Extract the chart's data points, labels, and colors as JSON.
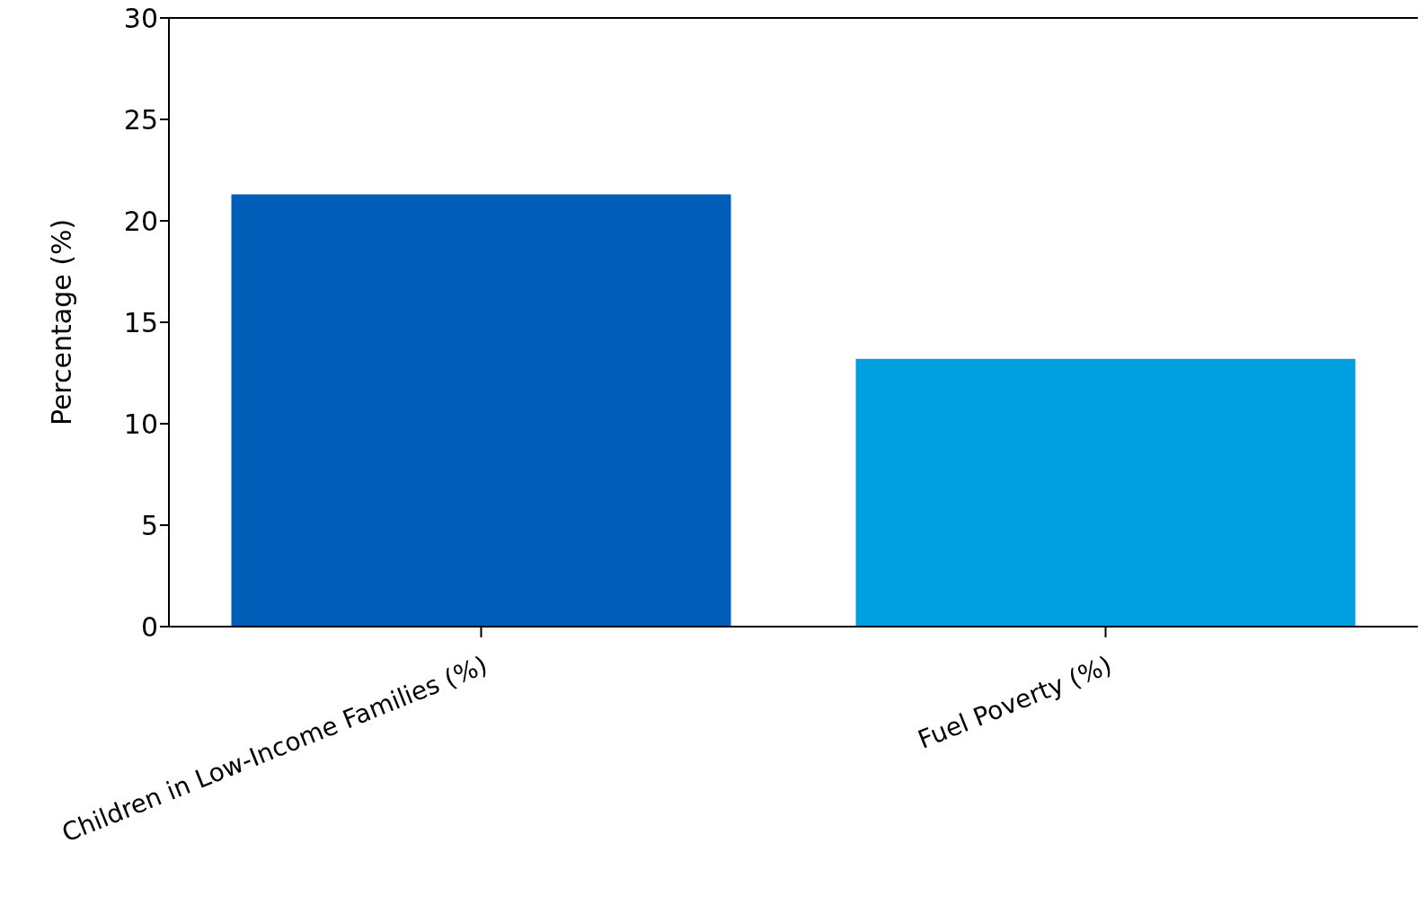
{
  "chart_data": {
    "type": "bar",
    "ylabel": "Percentage (%)",
    "categories": [
      "Children in Low-Income Families (%)",
      "Fuel Poverty (%)"
    ],
    "values": [
      21.3,
      13.2
    ],
    "colors": [
      "#005eb8",
      "#00a0e0"
    ],
    "ylim": [
      0,
      30
    ],
    "yticks": [
      0,
      5,
      10,
      15,
      20,
      25,
      30
    ]
  }
}
